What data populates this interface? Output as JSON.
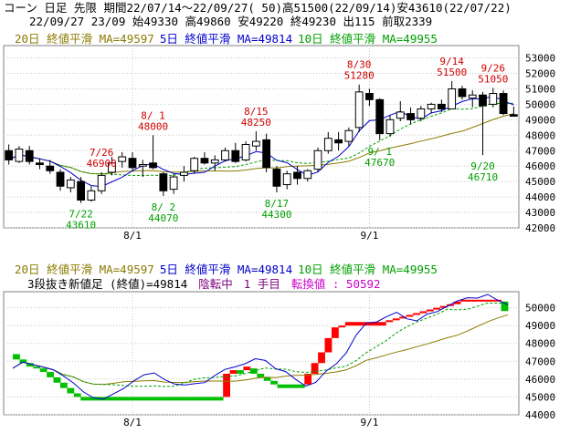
{
  "header": {
    "line1": "コーン 日足 先限 期間22/07/14～22/09/27( 50)高51500(22/09/14)安43610(22/07/22)",
    "line2": "22/09/27 23/09 始49330 高49860 安49220 終49230 出115 前取2339"
  },
  "colors": {
    "ma20": "#8b7a00",
    "ma5": "#0000cc",
    "ma10": "#00a000",
    "up_candle": "#ffffff",
    "down_candle": "#000000",
    "annotation_high": "#d00000",
    "annotation_low": "#00a000",
    "kagi_up": "#ff0000",
    "kagi_down": "#00c000",
    "grid": "#c8c8c8",
    "kagi_label": "#800080",
    "reversal_label": "#cc00cc"
  },
  "chart_data": [
    {
      "type": "candlestick",
      "legend": [
        {
          "text": "20日 終値平滑 MA=49597",
          "color": "#8b7a00"
        },
        {
          "text": "5日 終値平滑 MA=49814",
          "color": "#0000cc"
        },
        {
          "text": "10日 終値平滑 MA=49955",
          "color": "#00a000"
        }
      ],
      "yticks": [
        42000,
        43000,
        44000,
        45000,
        46000,
        47000,
        48000,
        49000,
        50000,
        51000,
        52000,
        53000
      ],
      "ylim": [
        42000,
        53800
      ],
      "xticks": [
        {
          "label": "8/1",
          "index": 12
        },
        {
          "label": "9/1",
          "index": 35
        }
      ],
      "ohlc": [
        [
          47000,
          47400,
          46100,
          46400
        ],
        [
          46300,
          47300,
          46200,
          47100
        ],
        [
          47000,
          47300,
          46100,
          46300
        ],
        [
          46200,
          46500,
          45800,
          46100
        ],
        [
          46000,
          46400,
          45500,
          45700
        ],
        [
          45600,
          45800,
          44400,
          44700
        ],
        [
          44600,
          45300,
          44300,
          45100
        ],
        [
          45000,
          45300,
          43610,
          43800
        ],
        [
          43800,
          44700,
          43700,
          44400
        ],
        [
          44400,
          45600,
          44200,
          45400
        ],
        [
          45600,
          46600,
          45400,
          46200
        ],
        [
          46300,
          46900,
          45900,
          46600
        ],
        [
          46500,
          46900,
          45700,
          45900
        ],
        [
          46000,
          46400,
          45300,
          46100
        ],
        [
          46200,
          48000,
          45800,
          45900
        ],
        [
          45500,
          45600,
          44070,
          44400
        ],
        [
          44500,
          45500,
          44200,
          45300
        ],
        [
          45400,
          46000,
          45000,
          45600
        ],
        [
          45700,
          46600,
          45500,
          46500
        ],
        [
          46500,
          46900,
          46100,
          46200
        ],
        [
          46200,
          46700,
          45700,
          46400
        ],
        [
          46400,
          47200,
          46300,
          47000
        ],
        [
          47000,
          47500,
          46200,
          46300
        ],
        [
          46400,
          47600,
          46300,
          47400
        ],
        [
          47300,
          48250,
          47000,
          47600
        ],
        [
          47700,
          48100,
          45600,
          45900
        ],
        [
          45800,
          46000,
          44300,
          44700
        ],
        [
          44800,
          45700,
          44500,
          45500
        ],
        [
          45600,
          46000,
          44800,
          45200
        ],
        [
          45200,
          45800,
          45000,
          45700
        ],
        [
          45800,
          47200,
          45600,
          47000
        ],
        [
          47000,
          48200,
          46800,
          47800
        ],
        [
          47700,
          48200,
          47000,
          47500
        ],
        [
          47600,
          48500,
          47300,
          48300
        ],
        [
          48500,
          51280,
          48200,
          50800
        ],
        [
          50700,
          51000,
          49900,
          50300
        ],
        [
          50300,
          50400,
          47670,
          48100
        ],
        [
          48100,
          49300,
          47900,
          49000
        ],
        [
          49100,
          50200,
          48900,
          49500
        ],
        [
          49400,
          49800,
          48700,
          49000
        ],
        [
          49100,
          49900,
          48900,
          49700
        ],
        [
          49700,
          50100,
          49400,
          50000
        ],
        [
          50000,
          50300,
          49500,
          49700
        ],
        [
          49700,
          51500,
          49700,
          51000
        ],
        [
          51000,
          51200,
          50300,
          50500
        ],
        [
          50400,
          50900,
          49800,
          50600
        ],
        [
          50600,
          50800,
          46710,
          49900
        ],
        [
          50000,
          51050,
          49800,
          50700
        ],
        [
          50700,
          50900,
          49300,
          49400
        ],
        [
          49330,
          49860,
          49220,
          49230
        ]
      ],
      "annotations": [
        {
          "date": "7/26",
          "value": "46900",
          "index": 9,
          "kind": "high"
        },
        {
          "date": "8/ 1",
          "value": "48000",
          "index": 14,
          "kind": "high"
        },
        {
          "date": "8/15",
          "value": "48250",
          "index": 24,
          "kind": "high"
        },
        {
          "date": "8/30",
          "value": "51280",
          "index": 34,
          "kind": "high"
        },
        {
          "date": "9/14",
          "value": "51500",
          "index": 43,
          "kind": "high"
        },
        {
          "date": "9/26",
          "value": "51050",
          "index": 47,
          "kind": "high"
        },
        {
          "date": "7/22",
          "value": "43610",
          "index": 7,
          "kind": "low"
        },
        {
          "date": "8/ 2",
          "value": "44070",
          "index": 15,
          "kind": "low"
        },
        {
          "date": "8/17",
          "value": "44300",
          "index": 26,
          "kind": "low"
        },
        {
          "date": "9/ 1",
          "value": "47670",
          "index": 36,
          "kind": "low"
        },
        {
          "date": "9/20",
          "value": "46710",
          "index": 46,
          "kind": "low"
        }
      ]
    },
    {
      "type": "kagi",
      "legend": [
        {
          "text": "20日 終値平滑 MA=49597",
          "color": "#8b7a00"
        },
        {
          "text": "5日 終値平滑 MA=49814",
          "color": "#0000cc"
        },
        {
          "text": "10日 終値平滑 MA=49955",
          "color": "#00a000"
        }
      ],
      "info": {
        "label": "3段抜き新値足 (終値)=49814",
        "state": "陰転中",
        "count": "1 手目",
        "reversal": "転換値 : 50592"
      },
      "yticks": [
        44000,
        45000,
        46000,
        47000,
        48000,
        49000,
        50000
      ],
      "ylim": [
        44000,
        50900
      ],
      "xticks": [
        {
          "label": "8/1",
          "index": 12
        },
        {
          "label": "9/1",
          "index": 35
        }
      ],
      "bars": [
        [
          47100,
          47400,
          "down"
        ],
        [
          46900,
          47100,
          "down"
        ],
        [
          46700,
          46900,
          "down"
        ],
        [
          46600,
          46700,
          "down"
        ],
        [
          46400,
          46600,
          "down"
        ],
        [
          46100,
          46400,
          "down"
        ],
        [
          45800,
          46100,
          "down"
        ],
        [
          45500,
          45800,
          "down"
        ],
        [
          45200,
          45500,
          "down"
        ],
        [
          45000,
          45200,
          "down"
        ],
        [
          44800,
          45000,
          "down"
        ],
        [
          44800,
          45000,
          "down"
        ],
        [
          44800,
          45000,
          "down"
        ],
        [
          44800,
          45000,
          "down"
        ],
        [
          44800,
          45000,
          "down"
        ],
        [
          44800,
          45000,
          "down"
        ],
        [
          44800,
          45000,
          "down"
        ],
        [
          44800,
          45000,
          "down"
        ],
        [
          44800,
          45000,
          "down"
        ],
        [
          44800,
          45000,
          "down"
        ],
        [
          44800,
          45000,
          "down"
        ],
        [
          44800,
          45000,
          "down"
        ],
        [
          44800,
          45000,
          "down"
        ],
        [
          44800,
          45000,
          "down"
        ],
        [
          44800,
          45000,
          "down"
        ],
        [
          44800,
          45000,
          "down"
        ],
        [
          44800,
          45000,
          "down"
        ],
        [
          44800,
          45000,
          "down"
        ],
        [
          44800,
          45000,
          "down"
        ],
        [
          44800,
          45000,
          "down"
        ],
        [
          44800,
          45000,
          "down"
        ],
        [
          45000,
          46300,
          "up"
        ],
        [
          46300,
          46500,
          "up"
        ],
        [
          46300,
          46500,
          "down"
        ],
        [
          46500,
          46700,
          "up"
        ],
        [
          46300,
          46600,
          "down"
        ],
        [
          46100,
          46300,
          "down"
        ],
        [
          45900,
          46100,
          "down"
        ],
        [
          45700,
          45900,
          "down"
        ],
        [
          45500,
          45700,
          "down"
        ],
        [
          45500,
          45700,
          "down"
        ],
        [
          45500,
          45700,
          "down"
        ],
        [
          45500,
          45700,
          "down"
        ],
        [
          45700,
          46300,
          "up"
        ],
        [
          46300,
          46900,
          "up"
        ],
        [
          46900,
          47500,
          "up"
        ],
        [
          47500,
          48300,
          "up"
        ],
        [
          48300,
          48900,
          "up"
        ],
        [
          48900,
          49000,
          "up"
        ],
        [
          49000,
          49200,
          "up"
        ],
        [
          49000,
          49200,
          "up"
        ],
        [
          49000,
          49200,
          "up"
        ],
        [
          49000,
          49200,
          "up"
        ],
        [
          49000,
          49200,
          "up"
        ],
        [
          49000,
          49200,
          "up"
        ],
        [
          49200,
          49300,
          "up"
        ],
        [
          49300,
          49400,
          "up"
        ],
        [
          49400,
          49500,
          "up"
        ],
        [
          49500,
          49600,
          "up"
        ],
        [
          49600,
          49700,
          "up"
        ],
        [
          49700,
          49800,
          "up"
        ],
        [
          49800,
          49900,
          "up"
        ],
        [
          49900,
          50000,
          "up"
        ],
        [
          50000,
          50100,
          "up"
        ],
        [
          50100,
          50200,
          "up"
        ],
        [
          50200,
          50350,
          "up"
        ],
        [
          50350,
          50450,
          "up"
        ],
        [
          50350,
          50450,
          "up"
        ],
        [
          50350,
          50450,
          "up"
        ],
        [
          50350,
          50450,
          "up"
        ],
        [
          50350,
          50450,
          "up"
        ],
        [
          50350,
          50450,
          "up"
        ],
        [
          49814,
          50350,
          "down"
        ]
      ]
    }
  ]
}
